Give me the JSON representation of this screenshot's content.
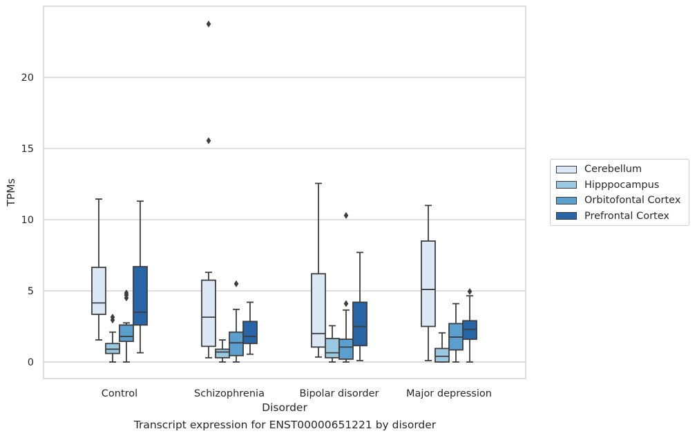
{
  "chart_data": {
    "type": "box",
    "xlabel": "Disorder",
    "ylabel": "TPMs",
    "caption": "Transcript expression for ENST00000651221 by disorder",
    "ylim": [
      -1.1,
      25.3
    ],
    "yticks": [
      0,
      5,
      10,
      15,
      20
    ],
    "grid": "horizontal",
    "legend_position": "right",
    "categories": [
      "Control",
      "Schizophrenia",
      "Bipolar disorder",
      "Major depression"
    ],
    "series": [
      {
        "name": "Cerebellum",
        "color": "#dbe9f6",
        "boxes": [
          {
            "whislo": 1.55,
            "q1": 3.35,
            "med": 4.15,
            "q3": 6.65,
            "whishi": 11.45,
            "fliers": []
          },
          {
            "whislo": 0.3,
            "q1": 1.1,
            "med": 3.15,
            "q3": 5.75,
            "whishi": 6.3,
            "fliers": [
              15.55,
              23.75
            ]
          },
          {
            "whislo": 0.35,
            "q1": 1.05,
            "med": 2.0,
            "q3": 6.2,
            "whishi": 12.55,
            "fliers": []
          },
          {
            "whislo": 0.1,
            "q1": 2.5,
            "med": 5.1,
            "q3": 8.5,
            "whishi": 11.0,
            "fliers": []
          }
        ]
      },
      {
        "name": "Hipppocampus",
        "color": "#9ac8e0",
        "boxes": [
          {
            "whislo": 0.0,
            "q1": 0.6,
            "med": 0.9,
            "q3": 1.3,
            "whishi": 2.1,
            "fliers": [
              2.95,
              3.15
            ]
          },
          {
            "whislo": 0.0,
            "q1": 0.3,
            "med": 0.7,
            "q3": 0.9,
            "whishi": 1.55,
            "fliers": []
          },
          {
            "whislo": 0.0,
            "q1": 0.3,
            "med": 0.65,
            "q3": 1.65,
            "whishi": 2.55,
            "fliers": []
          },
          {
            "whislo": 0.0,
            "q1": 0.0,
            "med": 0.4,
            "q3": 0.95,
            "whishi": 2.05,
            "fliers": []
          }
        ]
      },
      {
        "name": "Orbitofontal Cortex",
        "color": "#5a9fcd",
        "boxes": [
          {
            "whislo": 0.0,
            "q1": 1.45,
            "med": 1.8,
            "q3": 2.6,
            "whishi": 2.75,
            "fliers": [
              4.5,
              4.7,
              4.85
            ]
          },
          {
            "whislo": 0.0,
            "q1": 0.45,
            "med": 1.35,
            "q3": 2.1,
            "whishi": 3.7,
            "fliers": [
              5.5
            ]
          },
          {
            "whislo": 0.0,
            "q1": 0.2,
            "med": 1.05,
            "q3": 1.6,
            "whishi": 3.65,
            "fliers": [
              4.1,
              10.3
            ]
          },
          {
            "whislo": 0.0,
            "q1": 0.85,
            "med": 1.75,
            "q3": 2.7,
            "whishi": 4.1,
            "fliers": []
          }
        ]
      },
      {
        "name": "Prefrontal Cortex",
        "color": "#2765a6",
        "boxes": [
          {
            "whislo": 0.65,
            "q1": 2.6,
            "med": 3.5,
            "q3": 6.7,
            "whishi": 11.3,
            "fliers": []
          },
          {
            "whislo": 0.55,
            "q1": 1.3,
            "med": 1.8,
            "q3": 2.85,
            "whishi": 4.2,
            "fliers": []
          },
          {
            "whislo": 0.1,
            "q1": 1.15,
            "med": 2.5,
            "q3": 4.2,
            "whishi": 7.7,
            "fliers": []
          },
          {
            "whislo": 0.0,
            "q1": 1.6,
            "med": 2.3,
            "q3": 2.9,
            "whishi": 4.65,
            "fliers": [
              4.95
            ]
          }
        ]
      }
    ]
  }
}
